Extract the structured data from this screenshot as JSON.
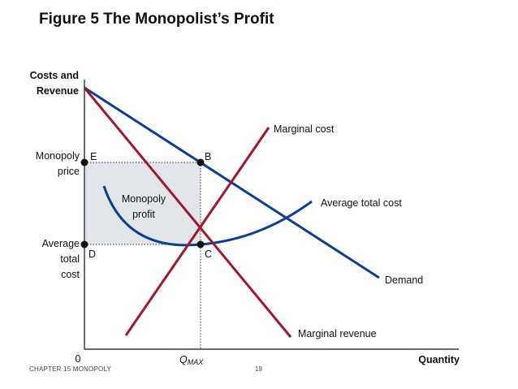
{
  "title": "Figure 5 The Monopolist’s Profit",
  "footer": {
    "chapter": "CHAPTER 15 MONOPOLY",
    "page": "19"
  },
  "axes": {
    "y_label_line1": "Costs and",
    "y_label_line2": "Revenue",
    "x_label": "Quantity",
    "origin": "0",
    "q_label_main": "Q",
    "q_label_sub": "MAX"
  },
  "y_ticks": {
    "price_line1": "Monopoly",
    "price_line2": "price",
    "atc_line1": "Average",
    "atc_line2": "total",
    "atc_line3": "cost"
  },
  "points": {
    "E": "E",
    "B": "B",
    "D": "D",
    "C": "C"
  },
  "profit_label": {
    "line1": "Monopoly",
    "line2": "profit"
  },
  "curves": {
    "marginal_cost": "Marginal cost",
    "average_total_cost": "Average total cost",
    "demand": "Demand",
    "marginal_revenue": "Marginal revenue"
  },
  "colors": {
    "demand_atc": "#0d3f8f",
    "mc_mr": "#a3162e",
    "profit_fill": "#e2e6ea"
  }
}
